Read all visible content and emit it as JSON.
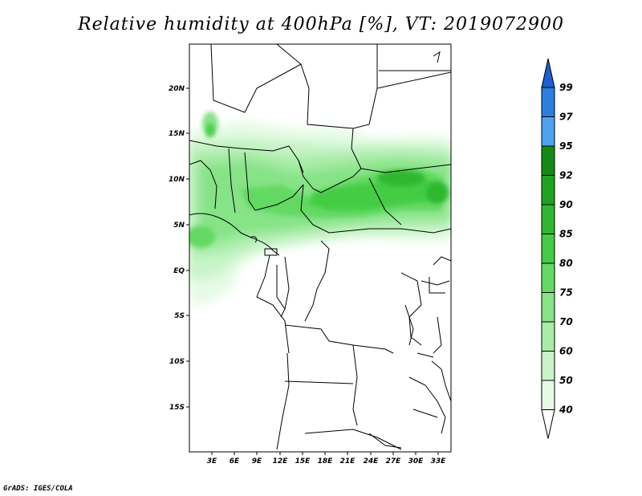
{
  "title": "Relative humidity at 400hPa [%], VT: 2019072900",
  "credit": "GrADS: IGES/COLA",
  "map": {
    "lat_ticks": [
      "20N",
      "15N",
      "10N",
      "5N",
      "EQ",
      "5S",
      "10S",
      "15S"
    ],
    "lon_ticks": [
      "3E",
      "6E",
      "9E",
      "12E",
      "15E",
      "18E",
      "21E",
      "24E",
      "27E",
      "30E",
      "33E"
    ]
  },
  "colorbar": {
    "levels": [
      "99",
      "97",
      "95",
      "92",
      "90",
      "85",
      "80",
      "75",
      "70",
      "60",
      "50",
      "40"
    ],
    "colors": [
      "#1c5fd0",
      "#2a7fe0",
      "#4ea3f0",
      "#138a13",
      "#1fa31f",
      "#2fb82f",
      "#44cc44",
      "#64d964",
      "#86e386",
      "#a9eca9",
      "#c8f4c8",
      "#e6fbe6"
    ]
  }
}
